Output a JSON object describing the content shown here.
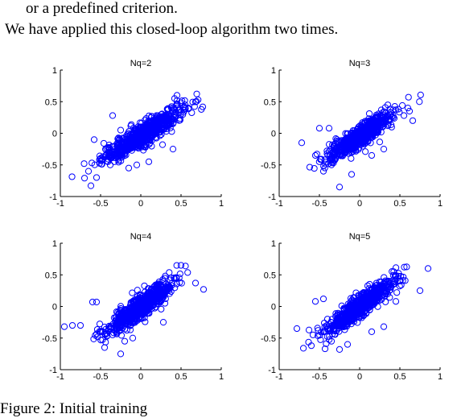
{
  "text": {
    "line1": "or a predefined criterion.",
    "line2": "We have applied this closed-loop algorithm two times.",
    "caption": "Figure 2: Initial training"
  },
  "chart_data": [
    {
      "type": "scatter",
      "title": "Nq=2",
      "xlim": [
        -1,
        1
      ],
      "ylim": [
        -1,
        1
      ],
      "xticks": [
        "-1",
        "-0.5",
        "0",
        "0.5",
        "1"
      ],
      "yticks": [
        "1",
        "0.5",
        "0",
        "-0.5",
        "-1"
      ],
      "marker": "o",
      "color": "#0000ff",
      "dense_cluster": {
        "center": [
          0.02,
          -0.02
        ],
        "spread_x": 0.25,
        "spread_y": 0.2,
        "slope": 0.8
      },
      "outliers": [
        [
          -0.62,
          -0.83
        ],
        [
          -0.65,
          -0.6
        ],
        [
          -0.55,
          -0.7
        ],
        [
          -0.58,
          -0.1
        ],
        [
          -0.45,
          -0.38
        ],
        [
          -0.35,
          0.28
        ],
        [
          -0.25,
          0.05
        ],
        [
          0.27,
          -0.18
        ],
        [
          0.35,
          0.22
        ],
        [
          0.42,
          0.55
        ],
        [
          0.45,
          0.6
        ],
        [
          0.55,
          0.45
        ],
        [
          0.4,
          -0.25
        ],
        [
          0.1,
          -0.45
        ],
        [
          -0.05,
          -0.5
        ],
        [
          0.38,
          0.4
        ],
        [
          -0.15,
          -0.55
        ],
        [
          -0.38,
          -0.5
        ]
      ]
    },
    {
      "type": "scatter",
      "title": "Nq=3",
      "xlim": [
        -1,
        1
      ],
      "ylim": [
        -1,
        1
      ],
      "xticks": [
        "-1",
        "-0.5",
        "0",
        "0.5",
        "1"
      ],
      "yticks": [
        "1",
        "0.5",
        "0",
        "-0.5",
        "-1"
      ],
      "marker": "o",
      "color": "#0000ff",
      "dense_cluster": {
        "center": [
          0.0,
          -0.05
        ],
        "spread_x": 0.2,
        "spread_y": 0.18,
        "slope": 0.8
      },
      "outliers": [
        [
          -0.72,
          -0.15
        ],
        [
          -0.5,
          0.08
        ],
        [
          -0.38,
          0.08
        ],
        [
          -0.45,
          -0.6
        ],
        [
          -0.25,
          -0.85
        ],
        [
          -0.35,
          -0.5
        ],
        [
          0.3,
          -0.25
        ],
        [
          0.35,
          0.45
        ],
        [
          0.62,
          0.35
        ],
        [
          0.66,
          0.2
        ],
        [
          0.25,
          0.28
        ],
        [
          -0.1,
          -0.65
        ],
        [
          0.15,
          -0.35
        ],
        [
          -0.55,
          -0.35
        ]
      ]
    },
    {
      "type": "scatter",
      "title": "Nq=4",
      "xlim": [
        -1,
        1
      ],
      "ylim": [
        -1,
        1
      ],
      "xticks": [
        "-1",
        "-0.5",
        "0",
        "0.5",
        "1"
      ],
      "yticks": [
        "1",
        "0.5",
        "0",
        "-0.5",
        "-1"
      ],
      "marker": "o",
      "color": "#0000ff",
      "dense_cluster": {
        "center": [
          0.0,
          0.0
        ],
        "spread_x": 0.2,
        "spread_y": 0.2,
        "slope": 0.9
      },
      "outliers": [
        [
          -0.95,
          -0.32
        ],
        [
          -0.85,
          -0.3
        ],
        [
          -0.75,
          -0.3
        ],
        [
          -0.6,
          0.07
        ],
        [
          -0.55,
          0.07
        ],
        [
          -0.45,
          -0.65
        ],
        [
          -0.5,
          -0.4
        ],
        [
          -0.25,
          -0.75
        ],
        [
          -0.2,
          -0.55
        ],
        [
          0.5,
          0.65
        ],
        [
          0.68,
          0.37
        ],
        [
          0.78,
          0.27
        ],
        [
          0.28,
          -0.25
        ],
        [
          0.3,
          0.05
        ],
        [
          -0.1,
          -0.5
        ],
        [
          -0.35,
          -0.45
        ]
      ]
    },
    {
      "type": "scatter",
      "title": "Nq=5",
      "xlim": [
        -1,
        1
      ],
      "ylim": [
        -1,
        1
      ],
      "xticks": [
        "-1",
        "-0.5",
        "0",
        "0.5",
        "1"
      ],
      "yticks": [
        "1",
        "0.5",
        "0",
        "-0.5",
        "-1"
      ],
      "marker": "o",
      "color": "#0000ff",
      "dense_cluster": {
        "center": [
          0.0,
          0.0
        ],
        "spread_x": 0.22,
        "spread_y": 0.2,
        "slope": 0.9
      },
      "outliers": [
        [
          -0.78,
          -0.35
        ],
        [
          -0.6,
          -0.62
        ],
        [
          -0.55,
          0.08
        ],
        [
          -0.45,
          0.12
        ],
        [
          -0.58,
          -0.45
        ],
        [
          -0.35,
          -0.55
        ],
        [
          -0.25,
          -0.68
        ],
        [
          -0.15,
          -0.6
        ],
        [
          0.3,
          -0.32
        ],
        [
          0.45,
          0.08
        ],
        [
          0.75,
          0.25
        ],
        [
          0.85,
          0.6
        ],
        [
          0.35,
          0.35
        ],
        [
          -0.4,
          -0.2
        ],
        [
          0.15,
          -0.4
        ]
      ]
    }
  ]
}
